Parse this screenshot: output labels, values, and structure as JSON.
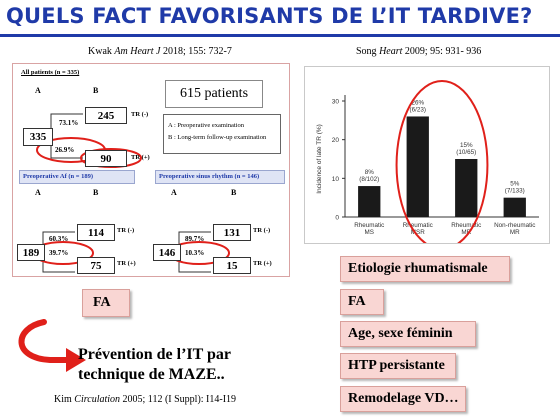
{
  "slide": {
    "title": "QUELS FACT FAVORISANTS DE L’IT TARDIVE?"
  },
  "refs": {
    "kwak_author": "Kwak",
    "kwak_journal": "Am Heart J",
    "kwak_rest": "2018; 155: 732-7",
    "song_author": "Song",
    "song_journal": "Heart",
    "song_rest": "2009; 95: 931- 936",
    "kim_author": "Kim",
    "kim_journal": "Circulation",
    "kim_rest": "2005; 112 (I Suppl): I14-I19"
  },
  "kwak": {
    "all_patients": "All patients (n = 335)",
    "label_a": "A",
    "label_b": "B",
    "patients_badge": "615 patients",
    "total": "335",
    "pct_neg": "73.1%",
    "pct_pos": "26.9%",
    "n_neg": "245",
    "n_pos": "90",
    "tr_neg": "TR (-)",
    "tr_pos": "TR (+)",
    "legend_a": "A : Preoperative examination",
    "legend_b": "B : Long-term follow-up examination",
    "af_header": "Preoperative Af (n = 189)",
    "sinus_header": "Preoperative sinus rhythm (n = 146)",
    "af": {
      "total": "189",
      "pct_neg": "60.3%",
      "pct_pos": "39.7%",
      "n_neg": "114",
      "n_pos": "75"
    },
    "sinus": {
      "total": "146",
      "pct_neg": "89.7%",
      "pct_pos": "10.3%",
      "n_neg": "131",
      "n_pos": "15"
    }
  },
  "chart_data": {
    "type": "bar",
    "categories": [
      "Rheumatic\nMS",
      "Rheumatic\nMSR",
      "Rheumatic\nMR",
      "Non-rheumatic\nMR"
    ],
    "values": [
      8,
      26,
      15,
      5
    ],
    "data_labels": [
      "8%\n(8/102)",
      "26%\n(6/23)",
      "15%\n(10/65)",
      "5%\n(7/133)"
    ],
    "ylabel": "Incidence of late TR (%)",
    "ylim": [
      0,
      30
    ],
    "yticks": [
      0,
      10,
      20,
      30
    ],
    "bar_color": "#1a1a1a"
  },
  "factors": {
    "etiology": "Etiologie rhumatismale",
    "fa_right": "FA",
    "age_sex": "Age, sexe féminin",
    "htp": "HTP persistante",
    "remodel": "Remodelage VD…",
    "fa_left": "FA"
  },
  "conclusion": {
    "line1": "Prévention de l’IT par",
    "line2": "technique de MAZE.."
  },
  "colors": {
    "title": "#1f3aa8",
    "highlight_ring": "#e0201a",
    "factor_box": "#f9d6d3"
  }
}
